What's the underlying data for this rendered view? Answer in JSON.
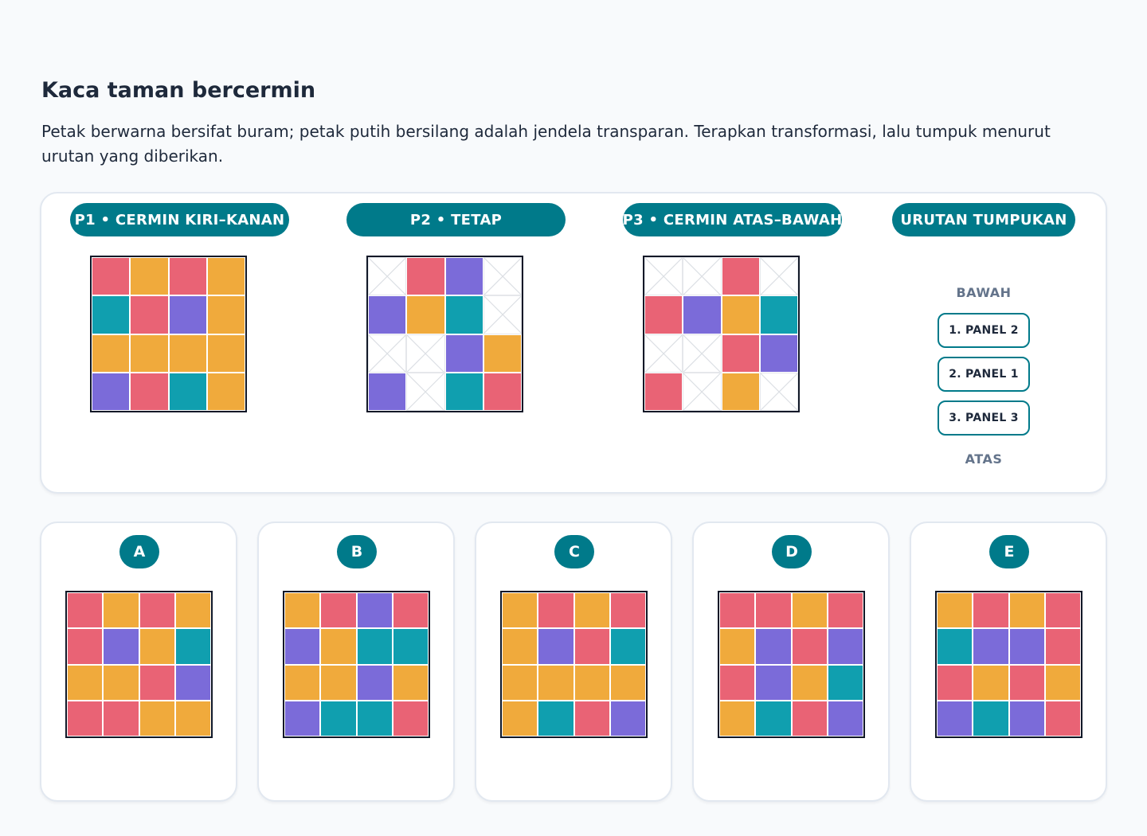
{
  "title": "Kaca taman bercermin",
  "subtitle": "Petak berwarna bersifat buram; petak putih bersilang adalah jendela transparan. Terapkan transformasi, lalu tumpuk menurut urutan yang diberikan.",
  "colors": {
    "R": "#e96375",
    "O": "#f0aa3c",
    "P": "#7b6bd9",
    "T": "#109faf",
    "W": "#ffffff"
  },
  "panels": [
    {
      "label": "P1 • CERMIN KIRI–KANAN",
      "cells": [
        [
          "R",
          "O",
          "R",
          "O"
        ],
        [
          "T",
          "R",
          "P",
          "O"
        ],
        [
          "O",
          "O",
          "O",
          "O"
        ],
        [
          "P",
          "R",
          "T",
          "O"
        ]
      ]
    },
    {
      "label": "P2 • TETAP",
      "cells": [
        [
          "W",
          "R",
          "P",
          "W"
        ],
        [
          "P",
          "O",
          "T",
          "W"
        ],
        [
          "W",
          "W",
          "P",
          "O"
        ],
        [
          "P",
          "W",
          "T",
          "R"
        ]
      ]
    },
    {
      "label": "P3 • CERMIN ATAS–BAWAH",
      "cells": [
        [
          "W",
          "W",
          "R",
          "W"
        ],
        [
          "R",
          "P",
          "O",
          "T"
        ],
        [
          "W",
          "W",
          "R",
          "P"
        ],
        [
          "R",
          "W",
          "O",
          "W"
        ]
      ]
    }
  ],
  "order": {
    "label": "URUTAN TUMPUKAN",
    "bottom": "BAWAH",
    "top": "ATAS",
    "items": [
      "1. PANEL 2",
      "2. PANEL 1",
      "3. PANEL 3"
    ]
  },
  "options": [
    {
      "label": "A",
      "cells": [
        [
          "R",
          "O",
          "R",
          "O"
        ],
        [
          "R",
          "P",
          "O",
          "T"
        ],
        [
          "O",
          "O",
          "R",
          "P"
        ],
        [
          "R",
          "R",
          "O",
          "O"
        ]
      ]
    },
    {
      "label": "B",
      "cells": [
        [
          "O",
          "R",
          "P",
          "R"
        ],
        [
          "P",
          "O",
          "T",
          "T"
        ],
        [
          "O",
          "O",
          "P",
          "O"
        ],
        [
          "P",
          "T",
          "T",
          "R"
        ]
      ]
    },
    {
      "label": "C",
      "cells": [
        [
          "O",
          "R",
          "O",
          "R"
        ],
        [
          "O",
          "P",
          "R",
          "T"
        ],
        [
          "O",
          "O",
          "O",
          "O"
        ],
        [
          "O",
          "T",
          "R",
          "P"
        ]
      ]
    },
    {
      "label": "D",
      "cells": [
        [
          "R",
          "R",
          "O",
          "R"
        ],
        [
          "O",
          "P",
          "R",
          "P"
        ],
        [
          "R",
          "P",
          "O",
          "T"
        ],
        [
          "O",
          "T",
          "R",
          "P"
        ]
      ]
    },
    {
      "label": "E",
      "cells": [
        [
          "O",
          "R",
          "O",
          "R"
        ],
        [
          "T",
          "P",
          "P",
          "R"
        ],
        [
          "R",
          "O",
          "R",
          "O"
        ],
        [
          "P",
          "T",
          "P",
          "R"
        ]
      ]
    }
  ]
}
